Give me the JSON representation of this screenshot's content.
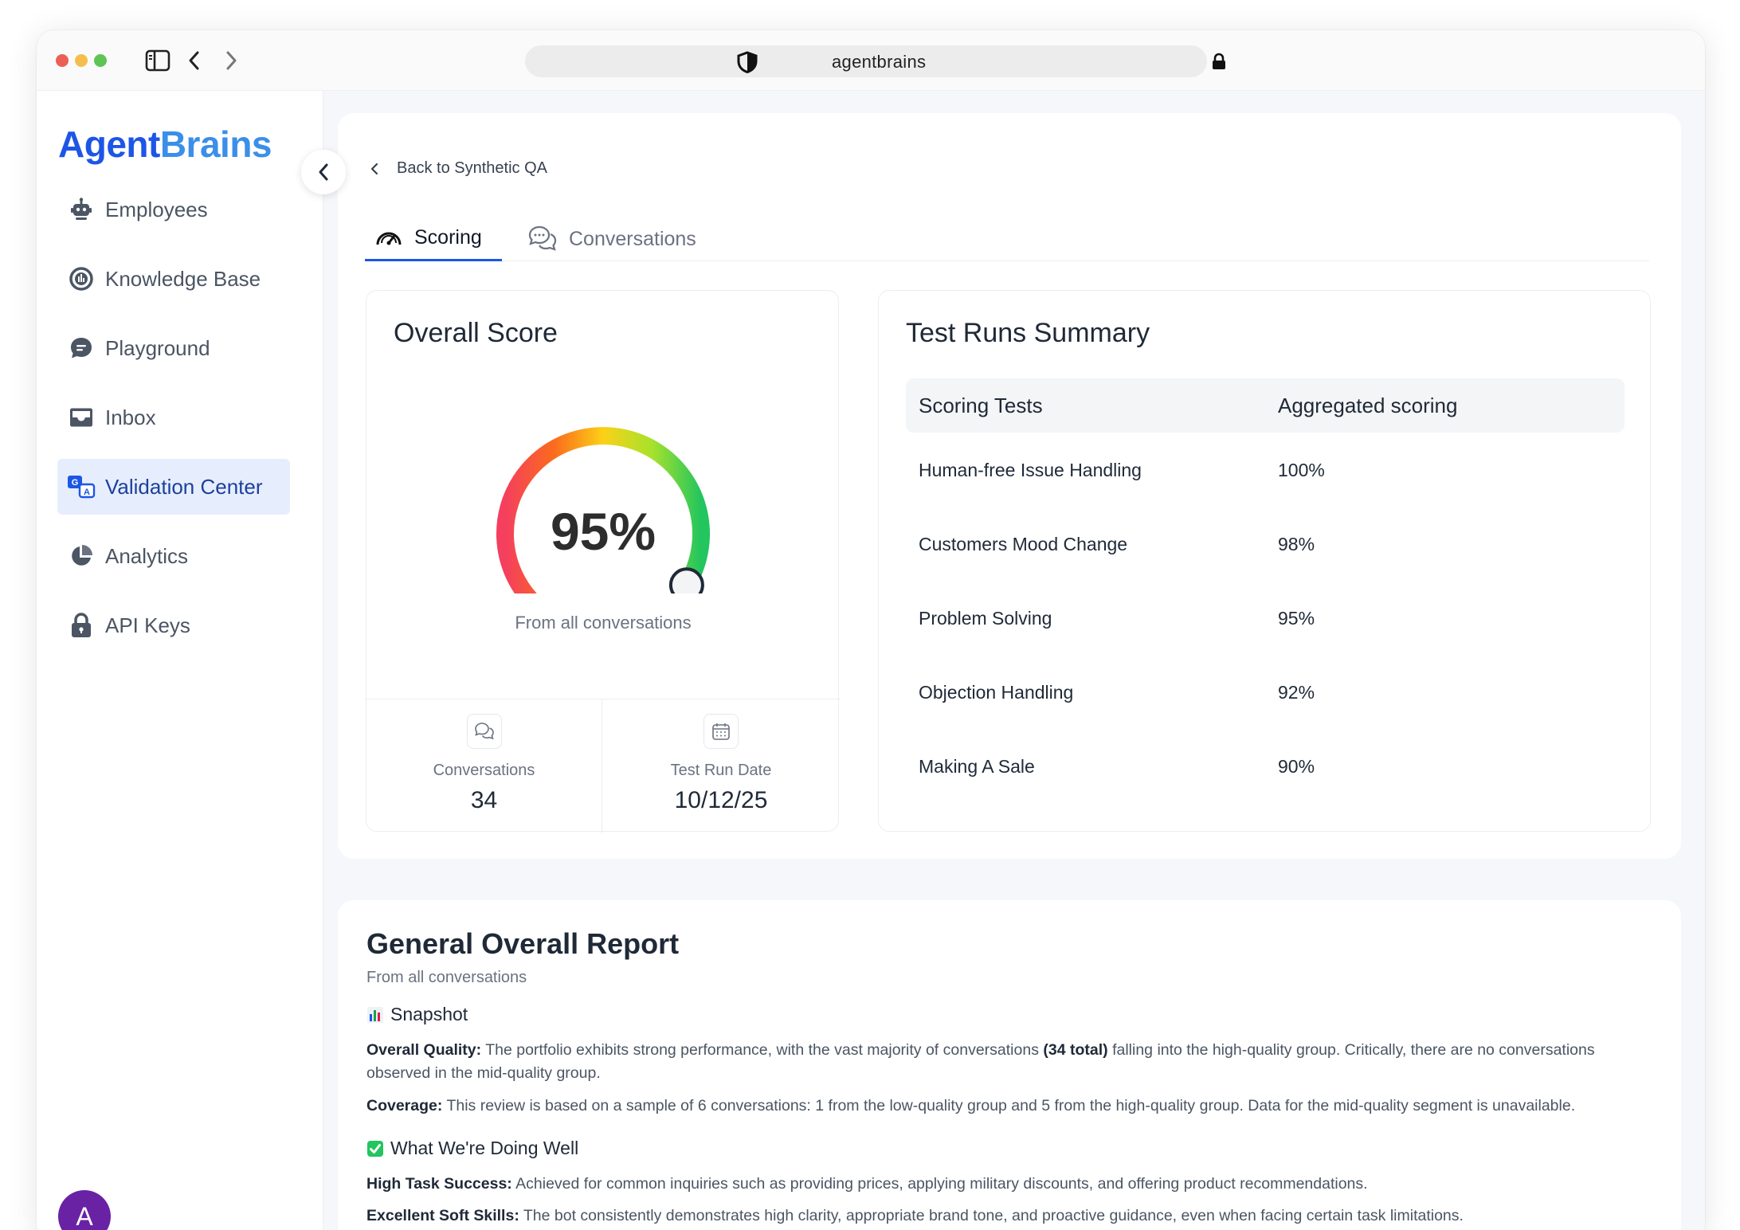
{
  "browser": {
    "url": "agentbrains"
  },
  "sidebar": {
    "logo_part1": "Agent",
    "logo_part2": "Brains",
    "items": [
      {
        "label": "Employees",
        "icon": "robot-icon"
      },
      {
        "label": "Knowledge Base",
        "icon": "knowledge-icon"
      },
      {
        "label": "Playground",
        "icon": "chat-icon"
      },
      {
        "label": "Inbox",
        "icon": "inbox-icon"
      },
      {
        "label": "Validation Center",
        "icon": "translate-icon",
        "active": true
      },
      {
        "label": "Analytics",
        "icon": "pie-chart-icon"
      },
      {
        "label": "API Keys",
        "icon": "lock-icon"
      }
    ],
    "avatar_initial": "A"
  },
  "main": {
    "back_label": "Back to Synthetic QA",
    "tabs": [
      {
        "label": "Scoring",
        "active": true
      },
      {
        "label": "Conversations",
        "active": false
      }
    ],
    "overall_score": {
      "title": "Overall Score",
      "value": "95%",
      "value_fraction": 0.95,
      "subtitle": "From all conversations",
      "stats": [
        {
          "label": "Conversations",
          "value": "34"
        },
        {
          "label": "Test Run Date",
          "value": "10/12/25"
        }
      ]
    },
    "test_runs": {
      "title": "Test Runs Summary",
      "columns": [
        "Scoring Tests",
        "Aggregated scoring"
      ],
      "rows": [
        {
          "test": "Human-free Issue Handling",
          "score": "100%"
        },
        {
          "test": "Customers Mood Change",
          "score": "98%"
        },
        {
          "test": "Problem Solving",
          "score": "95%"
        },
        {
          "test": "Objection Handling",
          "score": "92%"
        },
        {
          "test": "Making A Sale",
          "score": "90%"
        }
      ]
    }
  },
  "report": {
    "title": "General Overall Report",
    "subtitle": "From all conversations",
    "snapshot_heading": "Snapshot",
    "overall_quality_label": "Overall Quality:",
    "overall_quality_text_1": "The portfolio exhibits strong performance, with the vast majority of conversations",
    "overall_quality_bold": "(34 total)",
    "overall_quality_text_2": "falling into the high-quality group. Critically, there are no conversations observed in the mid-quality group.",
    "coverage_label": "Coverage:",
    "coverage_text": "This review is based on a sample of 6 conversations: 1 from the low-quality group and 5 from the high-quality group. Data for the mid-quality segment is unavailable.",
    "doing_well_heading": "What We're Doing Well",
    "task_success_label": "High Task Success:",
    "task_success_text": "Achieved for common inquiries such as providing prices, applying military discounts, and offering product recommendations.",
    "soft_skills_label": "Excellent Soft Skills:",
    "soft_skills_text": "The bot consistently demonstrates high clarity, appropriate brand tone, and proactive guidance, even when facing certain task limitations."
  }
}
